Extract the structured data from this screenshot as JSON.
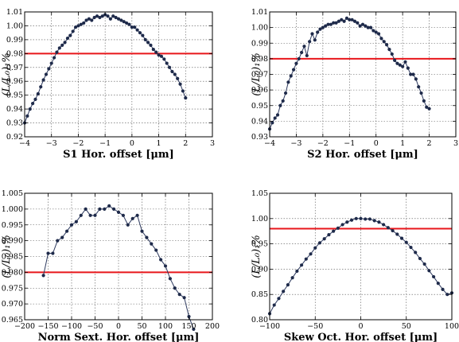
{
  "y_label": "(L/L₀)₁%",
  "chart_data": [
    {
      "type": "line",
      "xlabel": "S1 Hor. offset [μm]",
      "ylabel": "(L/L₀)₁%",
      "xlim": [
        -4,
        3
      ],
      "ylim": [
        0.92,
        1.01
      ],
      "xticks": [
        -4,
        -3,
        -2,
        -1,
        0,
        1,
        2,
        3
      ],
      "yticks": [
        0.92,
        0.93,
        0.94,
        0.95,
        0.96,
        0.97,
        0.98,
        0.99,
        1.0,
        1.01
      ],
      "ytick_labels": [
        "0.92",
        "0.93",
        "0.94",
        "0.95",
        "0.96",
        "0.97",
        "0.98",
        "0.99",
        "1.00",
        "1.01"
      ],
      "grid": true,
      "threshold": 0.98,
      "series": [
        {
          "x": [
            -4.0,
            -3.9,
            -3.8,
            -3.7,
            -3.6,
            -3.5,
            -3.4,
            -3.3,
            -3.2,
            -3.1,
            -3.0,
            -2.9,
            -2.8,
            -2.7,
            -2.6,
            -2.5,
            -2.4,
            -2.3,
            -2.2,
            -2.1,
            -2.0,
            -1.9,
            -1.8,
            -1.7,
            -1.6,
            -1.5,
            -1.4,
            -1.3,
            -1.2,
            -1.1,
            -1.0,
            -0.9,
            -0.8,
            -0.7,
            -0.6,
            -0.5,
            -0.4,
            -0.3,
            -0.2,
            -0.1,
            0.0,
            0.1,
            0.2,
            0.3,
            0.4,
            0.5,
            0.6,
            0.7,
            0.8,
            0.9,
            1.0,
            1.1,
            1.2,
            1.3,
            1.4,
            1.5,
            1.6,
            1.7,
            1.8,
            1.9,
            2.0
          ],
          "y": [
            0.93,
            0.935,
            0.94,
            0.944,
            0.947,
            0.951,
            0.956,
            0.961,
            0.965,
            0.969,
            0.973,
            0.977,
            0.981,
            0.984,
            0.986,
            0.988,
            0.991,
            0.993,
            0.996,
            0.999,
            1.0,
            1.001,
            1.002,
            1.004,
            1.005,
            1.004,
            1.006,
            1.007,
            1.006,
            1.007,
            1.008,
            1.007,
            1.005,
            1.007,
            1.006,
            1.005,
            1.004,
            1.003,
            1.002,
            1.001,
            0.999,
            0.999,
            0.997,
            0.995,
            0.993,
            0.99,
            0.988,
            0.986,
            0.983,
            0.981,
            0.979,
            0.978,
            0.976,
            0.973,
            0.97,
            0.967,
            0.965,
            0.962,
            0.958,
            0.953,
            0.948
          ]
        }
      ]
    },
    {
      "type": "line",
      "xlabel": "S2 Hor. offset [μm]",
      "ylabel": "(L/L₀)₁%",
      "xlim": [
        -4,
        3
      ],
      "ylim": [
        0.93,
        1.01
      ],
      "xticks": [
        -4,
        -3,
        -2,
        -1,
        0,
        1,
        2,
        3
      ],
      "yticks": [
        0.93,
        0.94,
        0.95,
        0.96,
        0.97,
        0.98,
        0.99,
        1.0,
        1.01
      ],
      "ytick_labels": [
        "0.93",
        "0.94",
        "0.95",
        "0.96",
        "0.97",
        "0.98",
        "0.99",
        "1.00",
        "1.01"
      ],
      "grid": true,
      "threshold": 0.98,
      "series": [
        {
          "x": [
            -4.0,
            -3.9,
            -3.8,
            -3.7,
            -3.6,
            -3.5,
            -3.4,
            -3.3,
            -3.2,
            -3.1,
            -3.0,
            -2.9,
            -2.8,
            -2.7,
            -2.6,
            -2.5,
            -2.4,
            -2.3,
            -2.2,
            -2.1,
            -2.0,
            -1.9,
            -1.8,
            -1.7,
            -1.6,
            -1.5,
            -1.4,
            -1.3,
            -1.2,
            -1.1,
            -1.0,
            -0.9,
            -0.8,
            -0.7,
            -0.6,
            -0.5,
            -0.4,
            -0.3,
            -0.2,
            -0.1,
            0.0,
            0.1,
            0.2,
            0.3,
            0.4,
            0.5,
            0.6,
            0.7,
            0.8,
            0.9,
            1.0,
            1.1,
            1.2,
            1.3,
            1.4,
            1.5,
            1.6,
            1.7,
            1.8,
            1.9,
            2.0
          ],
          "y": [
            0.935,
            0.939,
            0.942,
            0.944,
            0.95,
            0.953,
            0.958,
            0.965,
            0.969,
            0.973,
            0.977,
            0.98,
            0.984,
            0.988,
            0.982,
            0.991,
            0.996,
            0.992,
            0.997,
            0.999,
            1.0,
            1.001,
            1.002,
            1.002,
            1.003,
            1.003,
            1.004,
            1.005,
            1.004,
            1.006,
            1.005,
            1.005,
            1.004,
            1.003,
            1.001,
            1.002,
            1.001,
            1.0,
            1.0,
            0.998,
            0.997,
            0.996,
            0.993,
            0.991,
            0.989,
            0.986,
            0.983,
            0.979,
            0.977,
            0.976,
            0.975,
            0.978,
            0.974,
            0.97,
            0.97,
            0.967,
            0.962,
            0.958,
            0.953,
            0.949,
            0.948
          ]
        }
      ]
    },
    {
      "type": "line",
      "xlabel": "Norm Sext. Hor. offset [μm]",
      "ylabel": "(L/L₀)₁%",
      "xlim": [
        -200,
        200
      ],
      "ylim": [
        0.965,
        1.005
      ],
      "xticks": [
        -200,
        -150,
        -100,
        -50,
        0,
        50,
        100,
        150,
        200
      ],
      "yticks": [
        0.965,
        0.97,
        0.975,
        0.98,
        0.985,
        0.99,
        0.995,
        1.0,
        1.005
      ],
      "ytick_labels": [
        "0.965",
        "0.970",
        "0.975",
        "0.980",
        "0.985",
        "0.990",
        "0.995",
        "1.000",
        "1.005"
      ],
      "grid": true,
      "threshold": 0.98,
      "series": [
        {
          "x": [
            -160,
            -150,
            -140,
            -130,
            -120,
            -110,
            -100,
            -90,
            -80,
            -70,
            -60,
            -50,
            -40,
            -30,
            -20,
            -10,
            0,
            10,
            20,
            30,
            40,
            50,
            60,
            70,
            80,
            90,
            100,
            110,
            120,
            130,
            140,
            150,
            160
          ],
          "y": [
            0.979,
            0.986,
            0.986,
            0.99,
            0.991,
            0.993,
            0.995,
            0.996,
            0.998,
            1.0,
            0.998,
            0.998,
            1.0,
            1.0,
            1.001,
            1.0,
            0.999,
            0.998,
            0.995,
            0.997,
            0.998,
            0.993,
            0.991,
            0.989,
            0.987,
            0.984,
            0.982,
            0.978,
            0.975,
            0.973,
            0.972,
            0.966,
            0.962
          ]
        }
      ]
    },
    {
      "type": "line",
      "xlabel": "Skew Oct. Hor. offset [μm]",
      "ylabel": "(L/L₀)₁%",
      "xlim": [
        -100,
        100
      ],
      "ylim": [
        0.8,
        1.05
      ],
      "xticks": [
        -100,
        -50,
        0,
        50,
        100
      ],
      "yticks": [
        0.8,
        0.85,
        0.9,
        0.95,
        1.0,
        1.05
      ],
      "ytick_labels": [
        "0.80",
        "0.85",
        "0.90",
        "0.95",
        "1.00",
        "1.05"
      ],
      "grid": true,
      "threshold": 0.98,
      "series": [
        {
          "x": [
            -100,
            -95,
            -90,
            -85,
            -80,
            -75,
            -70,
            -65,
            -60,
            -55,
            -50,
            -45,
            -40,
            -35,
            -30,
            -25,
            -20,
            -15,
            -10,
            -5,
            0,
            5,
            10,
            15,
            20,
            25,
            30,
            35,
            40,
            45,
            50,
            55,
            60,
            65,
            70,
            75,
            80,
            85,
            90,
            95,
            100
          ],
          "y": [
            0.812,
            0.829,
            0.842,
            0.856,
            0.869,
            0.883,
            0.896,
            0.908,
            0.92,
            0.93,
            0.942,
            0.952,
            0.96,
            0.968,
            0.975,
            0.981,
            0.988,
            0.993,
            0.997,
            1.0,
            1.0,
            0.999,
            0.999,
            0.996,
            0.993,
            0.988,
            0.982,
            0.976,
            0.969,
            0.961,
            0.953,
            0.943,
            0.933,
            0.921,
            0.91,
            0.897,
            0.885,
            0.872,
            0.86,
            0.85,
            0.853
          ]
        }
      ]
    }
  ]
}
